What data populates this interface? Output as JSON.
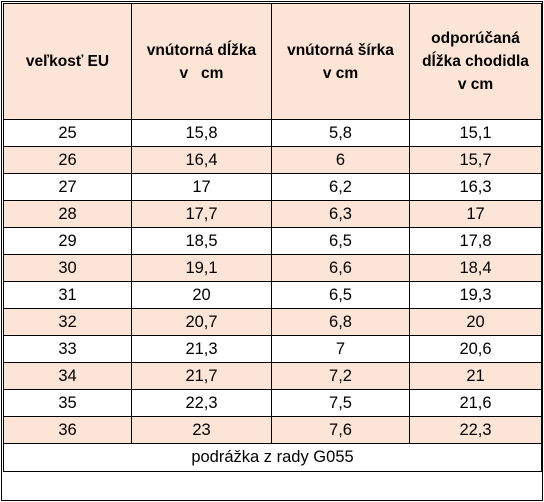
{
  "headers": {
    "size_eu": "veľkosť EU",
    "inner_length_l1": "vnútorná dĺžka",
    "inner_length_l2": "v   cm",
    "inner_width_l1": "vnútorná šírka",
    "inner_width_l2": "v cm",
    "foot_length_l1": "odporúčaná",
    "foot_length_l2": "dĺžka chodidla",
    "foot_length_l3": "v cm"
  },
  "rows": [
    [
      "25",
      "15,8",
      "5,8",
      "15,1"
    ],
    [
      "26",
      "16,4",
      "6",
      "15,7"
    ],
    [
      "27",
      "17",
      "6,2",
      "16,3"
    ],
    [
      "28",
      "17,7",
      "6,3",
      "17"
    ],
    [
      "29",
      "18,5",
      "6,5",
      "17,8"
    ],
    [
      "30",
      "19,1",
      "6,6",
      "18,4"
    ],
    [
      "31",
      "20",
      "6,5",
      "19,3"
    ],
    [
      "32",
      "20,7",
      "6,8",
      "20"
    ],
    [
      "33",
      "21,3",
      "7",
      "20,6"
    ],
    [
      "34",
      "21,7",
      "7,2",
      "21"
    ],
    [
      "35",
      "22,3",
      "7,5",
      "21,6"
    ],
    [
      "36",
      "23",
      "7,6",
      "22,3"
    ]
  ],
  "footer": "podrážka z rady G055",
  "colors": {
    "header_bg": "#fce4d6",
    "stripe_bg": "#fce4d6",
    "border": "#000000"
  }
}
